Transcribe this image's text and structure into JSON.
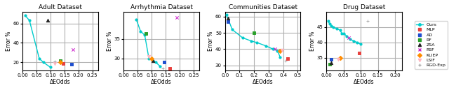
{
  "chart_data": [
    {
      "type": "line",
      "title": "Adult Dataset",
      "x_label": "ΔEOdds",
      "y_label": "Error %",
      "xlim": [
        0.0,
        0.27
      ],
      "ylim": [
        12,
        72
      ],
      "xticks": [
        {
          "value": 0.0,
          "label": "0.00"
        },
        0.05,
        {
          "value": 0.1,
          "label": "0.10"
        },
        0.15,
        {
          "value": 0.2,
          "label": "0.20"
        },
        0.25
      ],
      "yticks": [
        20,
        40,
        60
      ],
      "grid": true,
      "legend": "center right",
      "series": [
        {
          "name": "Ours",
          "type": "line",
          "color": "#00cccc",
          "marker": "o",
          "x": [
            0.01,
            0.025,
            0.06,
            0.075,
            0.1
          ],
          "values": [
            68,
            63,
            24,
            20,
            15
          ]
        },
        {
          "name": "MLP",
          "type": "scatter",
          "color": "#e8413e",
          "marker": "s",
          "x": [
            0.145
          ],
          "values": [
            19
          ]
        },
        {
          "name": "AD",
          "type": "scatter",
          "color": "#1f4fcf",
          "marker": "s",
          "x": [
            0.175
          ],
          "values": [
            18
          ]
        },
        {
          "name": "RF",
          "type": "scatter",
          "color": "#2ba02b",
          "marker": "s",
          "x": [
            0.135
          ],
          "values": [
            22
          ]
        },
        {
          "name": "ZSA",
          "type": "scatter",
          "color": "#222222",
          "marker": "^",
          "x": [
            0.09
          ],
          "values": [
            63
          ]
        },
        {
          "name": "RSF",
          "type": "scatter",
          "color": "#cc22cc",
          "marker": "x",
          "x": [
            0.18
          ],
          "values": [
            33
          ]
        },
        {
          "name": "KLIEP",
          "type": "scatter",
          "color": "#ff8c00",
          "marker": "D",
          "x": [
            0.135
          ],
          "values": [
            20
          ]
        },
        {
          "name": "LSIF",
          "type": "scatter",
          "color": "#ffb6c1",
          "marker": "v",
          "x": [
            0.115
          ],
          "values": [
            19
          ]
        },
        {
          "name": "RGD-Exp",
          "type": "scatter",
          "color": "#aaaaaa",
          "marker": "+",
          "x": [
            0.115
          ],
          "values": [
            21
          ]
        }
      ]
    },
    {
      "type": "line",
      "title": "Arrhythmia Dataset",
      "x_label": "ΔEOdds",
      "y_label": "Error %",
      "xlim": [
        0.0,
        0.27
      ],
      "ylim": [
        27,
        42
      ],
      "xticks": [
        {
          "value": 0.0,
          "label": "0.00"
        },
        0.05,
        {
          "value": 0.1,
          "label": "0.10"
        },
        0.15,
        {
          "value": 0.2,
          "label": "0.20"
        },
        0.25
      ],
      "yticks": [
        30,
        35
      ],
      "grid": true,
      "legend": "center right",
      "series": [
        {
          "name": "Ours",
          "type": "line",
          "color": "#00cccc",
          "marker": "o",
          "x": [
            0.045,
            0.06,
            0.075,
            0.09,
            0.105,
            0.115,
            0.13
          ],
          "values": [
            40,
            37,
            36,
            30,
            29.5,
            29,
            28
          ]
        },
        {
          "name": "MLP",
          "type": "scatter",
          "color": "#e8413e",
          "marker": "s",
          "x": [
            0.165
          ],
          "values": [
            27.5
          ]
        },
        {
          "name": "AD",
          "type": "scatter",
          "color": "#1f4fcf",
          "marker": "s",
          "x": [
            0.145
          ],
          "values": [
            29
          ]
        },
        {
          "name": "RF",
          "type": "scatter",
          "color": "#2ba02b",
          "marker": "s",
          "x": [
            0.08
          ],
          "values": [
            36.5
          ]
        },
        {
          "name": "ZSA",
          "type": "scatter",
          "color": "#222222",
          "marker": "^",
          "x": [
            0.105
          ],
          "values": [
            29.5
          ]
        },
        {
          "name": "RSF",
          "type": "scatter",
          "color": "#cc22cc",
          "marker": "x",
          "x": [
            0.19
          ],
          "values": [
            40.5
          ]
        },
        {
          "name": "KLIEP",
          "type": "scatter",
          "color": "#ff8c00",
          "marker": "D",
          "x": [
            0.1
          ],
          "values": [
            30.0
          ]
        },
        {
          "name": "LSIF",
          "type": "scatter",
          "color": "#ffb6c1",
          "marker": "v",
          "x": [
            0.09
          ],
          "values": [
            30.5
          ]
        },
        {
          "name": "RGD-Exp",
          "type": "scatter",
          "color": "#aaaaaa",
          "marker": "+",
          "x": [
            0.14
          ],
          "values": [
            27.5
          ]
        }
      ]
    },
    {
      "type": "line",
      "title": "Communities Dataset",
      "x_label": "ΔEOdds",
      "y_label": "Error %",
      "xlim": [
        0.0,
        0.52
      ],
      "ylim": [
        27,
        63
      ],
      "xticks": [
        0.0,
        0.1,
        0.2,
        0.3,
        0.4,
        0.5
      ],
      "yticks": [
        30,
        40,
        50,
        60
      ],
      "grid": true,
      "legend": "center right",
      "series": [
        {
          "name": "Ours",
          "type": "line",
          "color": "#00cccc",
          "marker": "o",
          "x": [
            0.01,
            0.05,
            0.12,
            0.18,
            0.22,
            0.28,
            0.33,
            0.36,
            0.38
          ],
          "values": [
            61,
            52,
            47,
            45,
            44,
            42,
            40,
            39,
            35
          ]
        },
        {
          "name": "MLP",
          "type": "scatter",
          "color": "#e8413e",
          "marker": "s",
          "x": [
            0.43
          ],
          "values": [
            34
          ]
        },
        {
          "name": "AD",
          "type": "scatter",
          "color": "#1f4fcf",
          "marker": "s",
          "x": [
            0.02
          ],
          "values": [
            57
          ]
        },
        {
          "name": "RF",
          "type": "scatter",
          "color": "#2ba02b",
          "marker": "s",
          "x": [
            0.2
          ],
          "values": [
            50
          ]
        },
        {
          "name": "ZSA",
          "type": "scatter",
          "color": "#222222",
          "marker": "^",
          "x": [
            0.02
          ],
          "values": [
            59
          ]
        },
        {
          "name": "RSF",
          "type": "scatter",
          "color": "#cc22cc",
          "marker": "x",
          "x": [
            0.345
          ],
          "values": [
            40
          ]
        },
        {
          "name": "KLIEP",
          "type": "scatter",
          "color": "#ff8c00",
          "marker": "D",
          "x": [
            0.38
          ],
          "values": [
            39
          ]
        },
        {
          "name": "LSIF",
          "type": "scatter",
          "color": "#ffb6c1",
          "marker": "v",
          "x": [
            0.39
          ],
          "values": [
            39.5
          ]
        },
        {
          "name": "RGD-Exp",
          "type": "scatter",
          "color": "#aaaaaa",
          "marker": "+",
          "x": [
            0.415
          ],
          "values": [
            33
          ]
        }
      ]
    },
    {
      "type": "line",
      "title": "Drug Dataset",
      "x_label": "ΔEOdds",
      "y_label": "Error %",
      "xlim": [
        0.0,
        0.22
      ],
      "ylim": [
        31,
        50
      ],
      "xticks": [
        {
          "value": 0.0,
          "label": "0.00"
        },
        0.05,
        {
          "value": 0.1,
          "label": "0.10"
        },
        0.15,
        {
          "value": 0.2,
          "label": "0.20"
        }
      ],
      "yticks": [
        35,
        40,
        45
      ],
      "grid": true,
      "legend": "center right",
      "series": [
        {
          "name": "Ours",
          "type": "line",
          "color": "#00cccc",
          "marker": "o",
          "x": [
            0.005,
            0.01,
            0.015,
            0.02,
            0.03,
            0.04,
            0.045,
            0.05,
            0.06,
            0.07,
            0.08,
            0.09,
            0.1
          ],
          "values": [
            47,
            46,
            45.5,
            45,
            44.5,
            44,
            43,
            43,
            42,
            41,
            40.5,
            40,
            39.5
          ]
        },
        {
          "name": "MLP",
          "type": "scatter",
          "color": "#e8413e",
          "marker": "s",
          "x": [
            0.095
          ],
          "values": [
            36.5
          ]
        },
        {
          "name": "AD",
          "type": "scatter",
          "color": "#1f4fcf",
          "marker": "s",
          "x": [
            0.015
          ],
          "values": [
            34.5
          ]
        },
        {
          "name": "RF",
          "type": "scatter",
          "color": "#2ba02b",
          "marker": "s",
          "x": [
            0.01
          ],
          "values": [
            33
          ]
        },
        {
          "name": "ZSA",
          "type": "scatter",
          "color": "#222222",
          "marker": "^",
          "x": [
            0.015
          ],
          "values": [
            33.5
          ]
        },
        {
          "name": "RSF",
          "type": "scatter",
          "color": "#cc22cc",
          "marker": "x",
          "x": [
            0.065
          ],
          "values": [
            41.5
          ]
        },
        {
          "name": "KLIEP",
          "type": "scatter",
          "color": "#ff8c00",
          "marker": "D",
          "x": [
            0.04
          ],
          "values": [
            35
          ]
        },
        {
          "name": "LSIF",
          "type": "scatter",
          "color": "#ffb6c1",
          "marker": "v",
          "x": [
            0.035
          ],
          "values": [
            34.5
          ]
        },
        {
          "name": "RGD-Exp",
          "type": "scatter",
          "color": "#aaaaaa",
          "marker": "+",
          "x": [
            0.12
          ],
          "values": [
            47
          ]
        }
      ]
    }
  ]
}
